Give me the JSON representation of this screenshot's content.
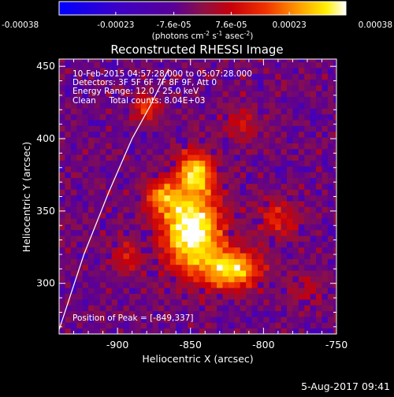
{
  "chart_data": {
    "type": "heatmap",
    "title": "Reconstructed RHESSI Image",
    "xlabel": "Heliocentric X (arcsec)",
    "ylabel": "Heliocentric Y (arcsec)",
    "xlim": [
      -940,
      -750
    ],
    "ylim": [
      265,
      455
    ],
    "xticks": [
      -900,
      -850,
      -800,
      -750
    ],
    "xtick_labels": [
      "-900",
      "-850",
      "-800",
      "-750"
    ],
    "yticks": [
      300,
      350,
      400,
      450
    ],
    "ytick_labels": [
      "300",
      "350",
      "400",
      "450"
    ],
    "colorbar": {
      "ticks": [
        -0.00038,
        -0.00023,
        -7.6e-05,
        7.6e-05,
        0.00023,
        0.00038
      ],
      "tick_labels": [
        "-0.00038",
        "-0.00023",
        "-7.6e-05",
        "7.6e-05",
        "0.00023",
        "0.00038"
      ],
      "range": [
        -0.00038,
        0.00038
      ],
      "unit_prefix": "(photons cm",
      "unit_exp1": "-2",
      "unit_mid1": " s",
      "unit_exp2": "-1",
      "unit_mid2": " asec",
      "unit_exp3": "-2",
      "unit_suffix": ")"
    },
    "annotations": [
      "10-Feb-2015 04:57:28.000 to 05:07:28.000",
      "Detectors: 3F 5F 6F 7F 8F 9F, Att 0",
      "Energy Range: 12.0 - 25.0 keV",
      "Clean     Total counts: 8.04E+03"
    ],
    "peak_label": "Position of Peak = [-849,337]",
    "peak": [
      -849,
      337
    ],
    "limb_curve": [
      [
        -940,
        268
      ],
      [
        -923,
        320
      ],
      [
        -906,
        363
      ],
      [
        -890,
        400
      ],
      [
        -878,
        422
      ],
      [
        -865,
        448
      ]
    ],
    "sources": [
      {
        "x": -849,
        "y": 337,
        "sx": 14,
        "sy": 20,
        "amp": 1.0
      },
      {
        "x": -846,
        "y": 378,
        "sx": 9,
        "sy": 10,
        "amp": 0.72
      },
      {
        "x": -822,
        "y": 310,
        "sx": 14,
        "sy": 10,
        "amp": 0.78
      },
      {
        "x": -870,
        "y": 360,
        "sx": 9,
        "sy": 9,
        "amp": 0.5
      },
      {
        "x": -880,
        "y": 422,
        "sx": 7,
        "sy": 7,
        "amp": 0.45
      },
      {
        "x": -790,
        "y": 345,
        "sx": 10,
        "sy": 10,
        "amp": 0.35
      },
      {
        "x": -893,
        "y": 318,
        "sx": 8,
        "sy": 8,
        "amp": 0.33
      },
      {
        "x": -815,
        "y": 410,
        "sx": 9,
        "sy": 8,
        "amp": 0.28
      },
      {
        "x": -770,
        "y": 295,
        "sx": 8,
        "sy": 8,
        "amp": 0.25
      }
    ]
  },
  "footer": {
    "date": "5-Aug-2017 09:41"
  }
}
